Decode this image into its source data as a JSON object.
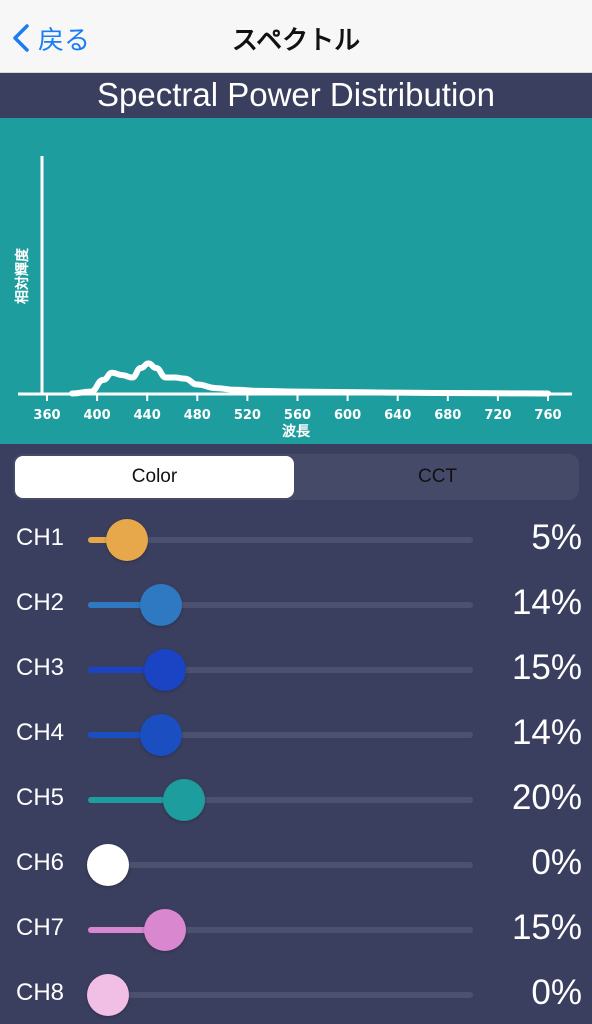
{
  "nav": {
    "back_label": "戻る",
    "title": "スペクトル"
  },
  "chart_title": "Spectral Power Distribution",
  "chart_data": {
    "type": "line",
    "title": "Spectral Power Distribution",
    "xlabel": "波長",
    "ylabel": "相対輝度",
    "xlim": [
      345,
      770
    ],
    "ylim": [
      0,
      1
    ],
    "x_ticks": [
      360,
      400,
      440,
      480,
      520,
      560,
      600,
      640,
      680,
      720,
      760
    ],
    "grid": false,
    "line_color": "#ffffff",
    "background_color": "#1e9d9f",
    "series": [
      {
        "x": [
          380,
          395,
          405,
          412,
          420,
          428,
          435,
          441,
          447,
          455,
          462,
          470,
          480,
          495,
          510,
          530,
          560,
          600,
          640,
          680,
          720,
          760
        ],
        "values": [
          0.002,
          0.01,
          0.06,
          0.09,
          0.08,
          0.07,
          0.11,
          0.13,
          0.11,
          0.07,
          0.07,
          0.065,
          0.04,
          0.025,
          0.018,
          0.013,
          0.01,
          0.008,
          0.006,
          0.004,
          0.003,
          0.002
        ]
      }
    ]
  },
  "tabs": {
    "color_label": "Color",
    "cct_label": "CCT"
  },
  "channels": [
    {
      "label": "CH1",
      "value": 5,
      "value_text": "5%",
      "color": "#e7a84b"
    },
    {
      "label": "CH2",
      "value": 14,
      "value_text": "14%",
      "color": "#2f79c2"
    },
    {
      "label": "CH3",
      "value": 15,
      "value_text": "15%",
      "color": "#1a44c4"
    },
    {
      "label": "CH4",
      "value": 14,
      "value_text": "14%",
      "color": "#1b4fc1"
    },
    {
      "label": "CH5",
      "value": 20,
      "value_text": "20%",
      "color": "#1e9d9f"
    },
    {
      "label": "CH6",
      "value": 0,
      "value_text": "0%",
      "color": "#ffffff"
    },
    {
      "label": "CH7",
      "value": 15,
      "value_text": "15%",
      "color": "#d987cf"
    },
    {
      "label": "CH8",
      "value": 0,
      "value_text": "0%",
      "color": "#f1bfe6"
    }
  ]
}
